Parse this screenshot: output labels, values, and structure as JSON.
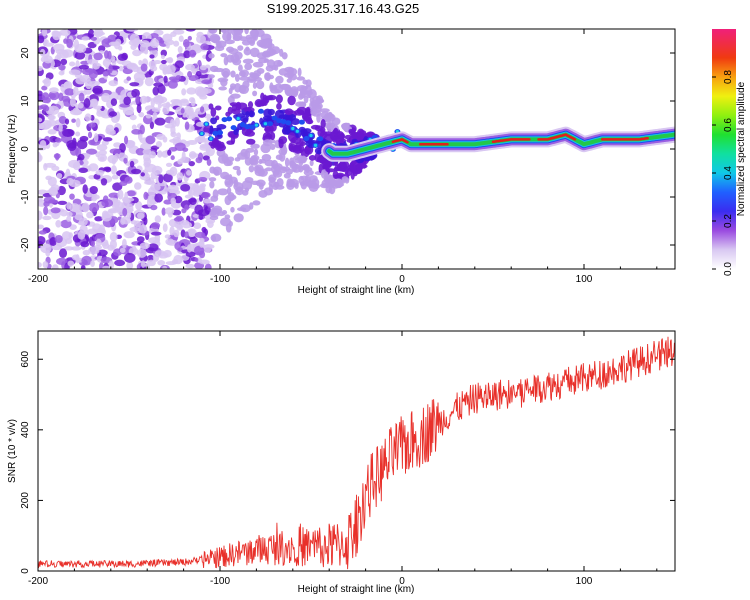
{
  "title": "S199.2025.317.16.43.G25",
  "colors": {
    "snr_line": "#e8302a",
    "axes": "#000000",
    "spectrogram_base": "#7b2fd6",
    "ridge_hot": "#e0201c",
    "ridge_mid": "#22c84a",
    "ridge_edge": "#1e4ef0"
  },
  "chart_data": [
    {
      "type": "heatmap",
      "name": "spectrogram",
      "xlabel": "Height of straight line (km)",
      "ylabel": "Frequency (Hz)",
      "xlim": [
        -200,
        150
      ],
      "ylim": [
        -25,
        25
      ],
      "xticks": [
        -200,
        -100,
        0,
        100
      ],
      "yticks": [
        -20,
        -10,
        0,
        10,
        20
      ],
      "description_ridge": [
        [
          -105,
          4
        ],
        [
          -95,
          5
        ],
        [
          -85,
          6
        ],
        [
          -75,
          7
        ],
        [
          -65,
          6
        ],
        [
          -55,
          4
        ],
        [
          -45,
          1
        ],
        [
          -38,
          -1
        ],
        [
          -30,
          -1
        ],
        [
          -20,
          0
        ],
        [
          -10,
          1
        ],
        [
          0,
          2
        ],
        [
          5,
          1
        ],
        [
          20,
          1
        ],
        [
          40,
          1
        ],
        [
          60,
          2
        ],
        [
          80,
          2
        ],
        [
          90,
          3
        ],
        [
          100,
          1
        ],
        [
          110,
          2
        ],
        [
          130,
          2
        ],
        [
          150,
          3
        ]
      ],
      "colorbar": {
        "label": "Normalized spectral amplitude",
        "range": [
          0.0,
          1.0
        ],
        "ticks": [
          "0.0",
          "0.2",
          "0.4",
          "0.6",
          "0.8"
        ],
        "tick_values": [
          0.0,
          0.2,
          0.4,
          0.6,
          0.8
        ]
      }
    },
    {
      "type": "line",
      "name": "snr",
      "xlabel": "Height of straight line (km)",
      "ylabel": "SNR (10 * v/v)",
      "xlim": [
        -200,
        150
      ],
      "ylim": [
        0,
        680
      ],
      "xticks": [
        -200,
        -100,
        0,
        100
      ],
      "yticks": [
        0,
        200,
        400,
        600
      ],
      "trend": [
        [
          -200,
          20
        ],
        [
          -150,
          20
        ],
        [
          -120,
          25
        ],
        [
          -100,
          40
        ],
        [
          -80,
          60
        ],
        [
          -60,
          70
        ],
        [
          -40,
          70
        ],
        [
          -30,
          80
        ],
        [
          -25,
          130
        ],
        [
          -20,
          220
        ],
        [
          -15,
          260
        ],
        [
          -10,
          290
        ],
        [
          -5,
          330
        ],
        [
          0,
          350
        ],
        [
          10,
          380
        ],
        [
          20,
          420
        ],
        [
          30,
          460
        ],
        [
          40,
          490
        ],
        [
          60,
          505
        ],
        [
          80,
          525
        ],
        [
          100,
          545
        ],
        [
          120,
          575
        ],
        [
          140,
          610
        ],
        [
          150,
          625
        ]
      ]
    }
  ]
}
